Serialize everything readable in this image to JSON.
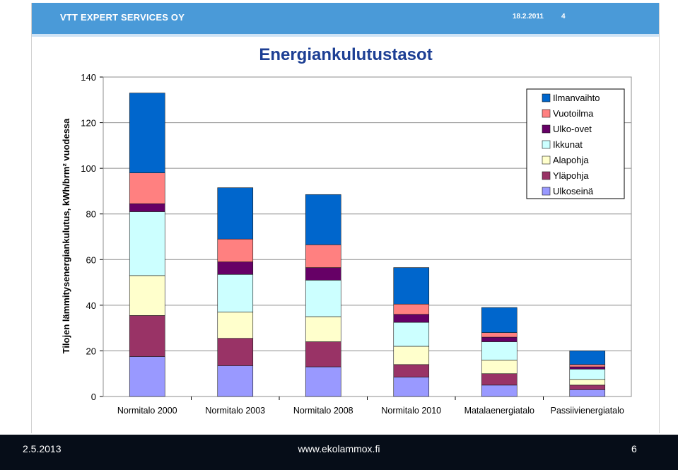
{
  "header": {
    "company": "VTT EXPERT SERVICES OY",
    "date": "18.2.2011",
    "page": "4"
  },
  "footer": {
    "date": "2.5.2013",
    "site": "www.ekolammox.fi",
    "page": "6"
  },
  "chart_data": {
    "type": "bar",
    "stacked": true,
    "title": "Energiankulutustasot",
    "ylabel": "Tilojen lämmitysenergiankulutus, kWh/brm² vuodessa",
    "xlabel": "",
    "ylim": [
      0,
      140
    ],
    "yticks": [
      0,
      20,
      40,
      60,
      80,
      100,
      120,
      140
    ],
    "grid": true,
    "legend_position": "top-right",
    "categories": [
      "Normitalo 2000",
      "Normitalo 2003",
      "Normitalo 2008",
      "Normitalo 2010",
      "Matalaenergiatalo",
      "Passiivienergiatalo"
    ],
    "series": [
      {
        "name": "Ulkoseinä",
        "color": "#9999ff",
        "values": [
          17.5,
          13.5,
          13,
          8.5,
          5,
          3
        ]
      },
      {
        "name": "Yläpohja",
        "color": "#993366",
        "values": [
          18,
          12,
          11,
          5.5,
          5,
          2
        ]
      },
      {
        "name": "Alapohja",
        "color": "#ffffcc",
        "values": [
          17.5,
          11.5,
          11,
          8,
          6,
          2.5
        ]
      },
      {
        "name": "Ikkunat",
        "color": "#ccffff",
        "values": [
          28,
          16.5,
          16,
          10.5,
          8,
          4.5
        ]
      },
      {
        "name": "Ulko-ovet",
        "color": "#660066",
        "values": [
          3.5,
          5.5,
          5.5,
          3.5,
          2,
          1
        ]
      },
      {
        "name": "Vuotoilma",
        "color": "#ff8080",
        "values": [
          13.5,
          10,
          10,
          4.5,
          2,
          1
        ]
      },
      {
        "name": "Ilmanvaihto",
        "color": "#0066cc",
        "values": [
          35,
          22.5,
          22,
          16,
          11,
          6
        ]
      }
    ]
  }
}
